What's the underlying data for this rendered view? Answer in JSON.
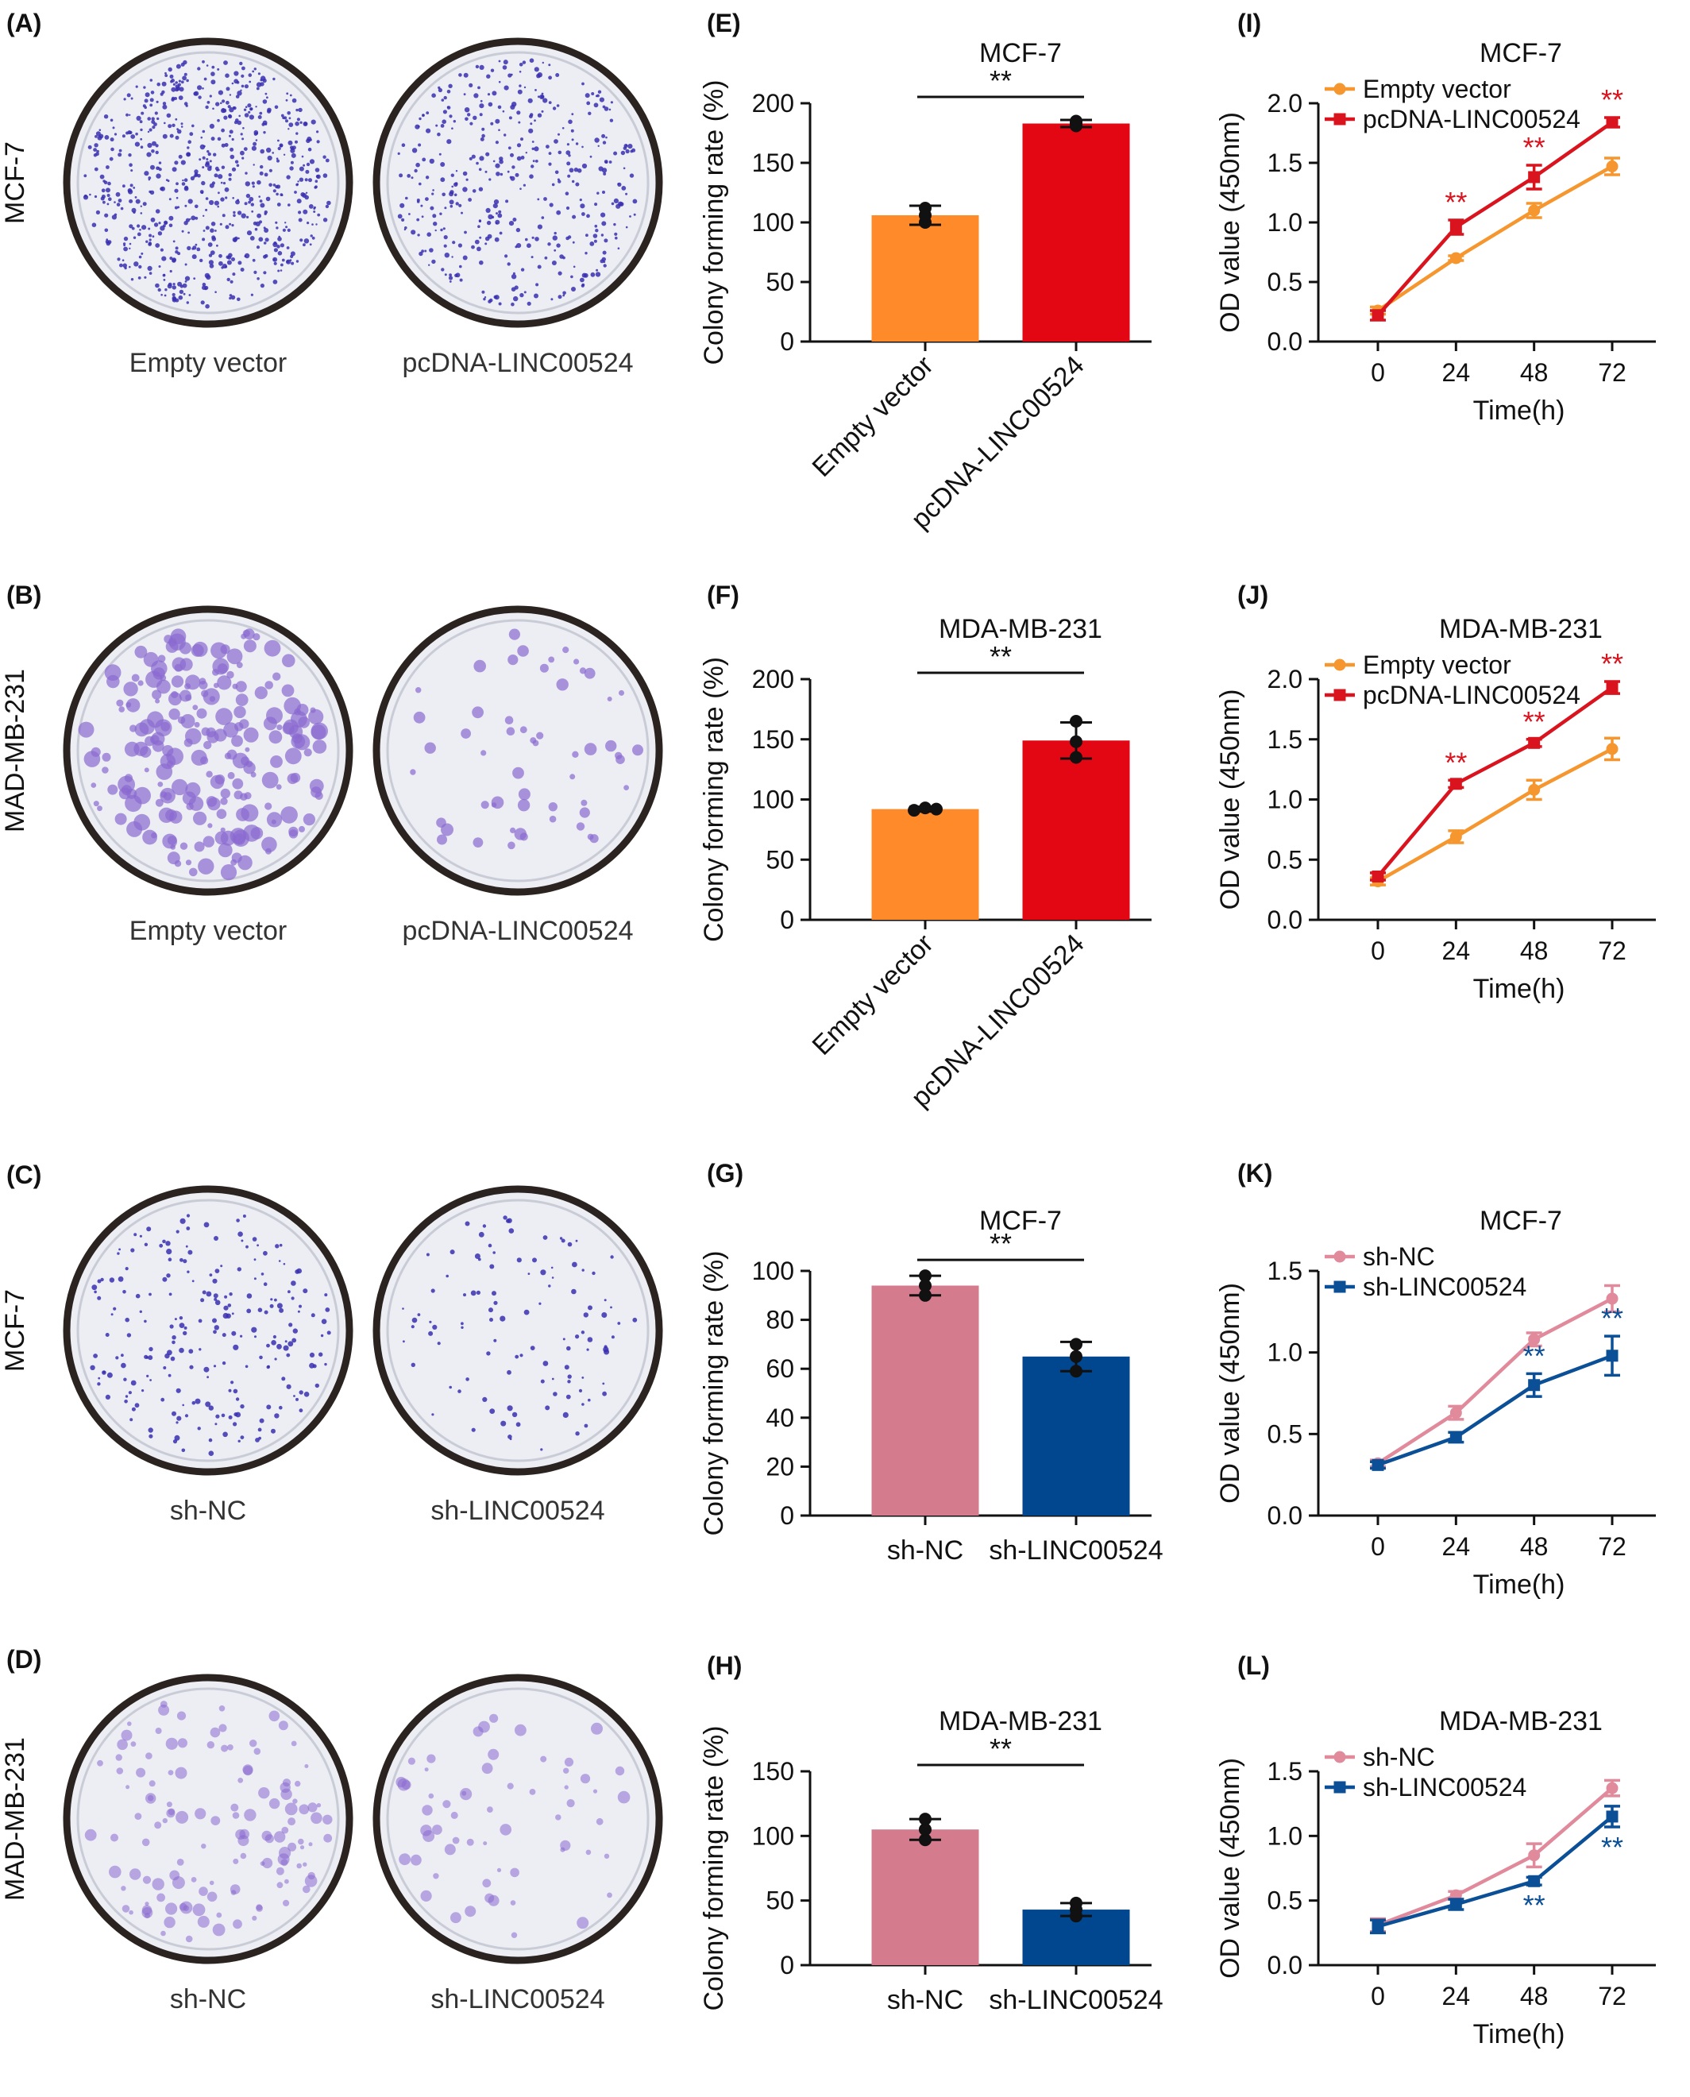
{
  "figure": {
    "colors": {
      "orange": "#ff8a2a",
      "red": "#e30613",
      "pink": "#d47b8e",
      "blue": "#00478f",
      "pink_line": "#e08a9c",
      "orange_line": "#f5962f",
      "red_line": "#d9141e",
      "blue_line": "#0b4f96",
      "dish_rim": "#2a2320",
      "dish_fill": "#eceef4",
      "stain": "#3a2fb0",
      "stain_light": "#8a6ad0"
    },
    "photo_panels": [
      {
        "label": "(A)",
        "row_label": "MCF-7",
        "captions": [
          "Empty vector",
          "pcDNA-LINC00524"
        ],
        "stain": "dots_dense"
      },
      {
        "label": "(B)",
        "row_label": "MAD-MB-231",
        "captions": [
          "Empty vector",
          "pcDNA-LINC00524"
        ],
        "stain": "blotch"
      },
      {
        "label": "(C)",
        "row_label": "MCF-7",
        "captions": [
          "sh-NC",
          "sh-LINC00524"
        ],
        "stain": "dots_sparse"
      },
      {
        "label": "(D)",
        "row_label": "MAD-MB-231",
        "captions": [
          "sh-NC",
          "sh-LINC00524"
        ],
        "stain": "blotch_light"
      }
    ]
  },
  "chart_data": [
    {
      "panel": "(E)",
      "type": "bar",
      "title": "MCF-7",
      "ylabel": "Colony forming rate (%)",
      "ylim": [
        0,
        200
      ],
      "yticks": [
        0,
        50,
        100,
        150,
        200
      ],
      "categories": [
        "Empty vector",
        "pcDNA-LINC00524"
      ],
      "rotated_labels": true,
      "values": [
        106,
        183
      ],
      "errors": [
        8,
        3
      ],
      "points": [
        [
          100,
          112,
          106
        ],
        [
          181,
          185,
          183
        ]
      ],
      "bar_colors": [
        "orange",
        "red"
      ],
      "significance": "**"
    },
    {
      "panel": "(F)",
      "type": "bar",
      "title": "MDA-MB-231",
      "ylabel": "Colony forming rate (%)",
      "ylim": [
        0,
        200
      ],
      "yticks": [
        0,
        50,
        100,
        150,
        200
      ],
      "categories": [
        "Empty vector",
        "pcDNA-LINC00524"
      ],
      "rotated_labels": true,
      "values": [
        92,
        149
      ],
      "errors": [
        2,
        15
      ],
      "points": [
        [
          91,
          93,
          92
        ],
        [
          135,
          165,
          148
        ]
      ],
      "bar_colors": [
        "orange",
        "red"
      ],
      "significance": "**"
    },
    {
      "panel": "(G)",
      "type": "bar",
      "title": "MCF-7",
      "ylabel": "Colony forming rate (%)",
      "ylim": [
        0,
        100
      ],
      "yticks": [
        0,
        20,
        40,
        60,
        80,
        100
      ],
      "categories": [
        "sh-NC",
        "sh-LINC00524"
      ],
      "rotated_labels": false,
      "values": [
        94,
        65
      ],
      "errors": [
        4,
        6
      ],
      "points": [
        [
          90,
          98,
          94
        ],
        [
          59,
          70,
          65
        ]
      ],
      "bar_colors": [
        "pink",
        "blue"
      ],
      "significance": "**"
    },
    {
      "panel": "(H)",
      "type": "bar",
      "title": "MDA-MB-231",
      "ylabel": "Colony forming rate (%)",
      "ylim": [
        0,
        150
      ],
      "yticks": [
        0,
        50,
        100,
        150
      ],
      "categories": [
        "sh-NC",
        "sh-LINC00524"
      ],
      "rotated_labels": false,
      "values": [
        105,
        43
      ],
      "errors": [
        8,
        5
      ],
      "points": [
        [
          97,
          113,
          105
        ],
        [
          38,
          48,
          43
        ]
      ],
      "bar_colors": [
        "pink",
        "blue"
      ],
      "significance": "**"
    },
    {
      "panel": "(I)",
      "type": "line",
      "title": "MCF-7",
      "xlabel": "Time(h)",
      "ylabel": "OD value (450nm)",
      "x": [
        0,
        24,
        48,
        72
      ],
      "ylim": [
        0,
        2.0
      ],
      "yticks": [
        "0.0",
        "0.5",
        "1.0",
        "1.5",
        "2.0"
      ],
      "series": [
        {
          "name": "Empty vector",
          "values": [
            0.26,
            0.7,
            1.1,
            1.47
          ],
          "errors": [
            0.03,
            0.02,
            0.06,
            0.07
          ],
          "color": "orange_line",
          "marker": "circle"
        },
        {
          "name": "pcDNA-LINC00524",
          "values": [
            0.22,
            0.96,
            1.38,
            1.84
          ],
          "errors": [
            0.04,
            0.06,
            0.1,
            0.04
          ],
          "color": "red_line",
          "marker": "square"
        }
      ],
      "stars": [
        {
          "x": 24,
          "value": 0.96,
          "err": 0.06
        },
        {
          "x": 48,
          "value": 1.38,
          "err": 0.1
        },
        {
          "x": 72,
          "value": 1.84,
          "err": 0.04
        }
      ],
      "stars_position": "above",
      "star_color": "red_line",
      "significance": "**"
    },
    {
      "panel": "(J)",
      "type": "line",
      "title": "MDA-MB-231",
      "xlabel": "Time(h)",
      "ylabel": "OD value (450nm)",
      "x": [
        0,
        24,
        48,
        72
      ],
      "ylim": [
        0,
        2.0
      ],
      "yticks": [
        "0.0",
        "0.5",
        "1.0",
        "1.5",
        "2.0"
      ],
      "series": [
        {
          "name": "Empty vector",
          "values": [
            0.32,
            0.69,
            1.08,
            1.42
          ],
          "errors": [
            0.03,
            0.05,
            0.08,
            0.09
          ],
          "color": "orange_line",
          "marker": "circle"
        },
        {
          "name": "pcDNA-LINC00524",
          "values": [
            0.36,
            1.13,
            1.47,
            1.93
          ],
          "errors": [
            0.03,
            0.03,
            0.03,
            0.05
          ],
          "color": "red_line",
          "marker": "square"
        }
      ],
      "stars": [
        {
          "x": 24,
          "value": 1.13,
          "err": 0.03
        },
        {
          "x": 48,
          "value": 1.47,
          "err": 0.03
        },
        {
          "x": 72,
          "value": 1.93,
          "err": 0.05
        }
      ],
      "stars_position": "above",
      "star_color": "red_line",
      "significance": "**"
    },
    {
      "panel": "(K)",
      "type": "line",
      "title": "MCF-7",
      "xlabel": "Time(h)",
      "ylabel": "OD value (450nm)",
      "x": [
        0,
        24,
        48,
        72
      ],
      "ylim": [
        0,
        1.5
      ],
      "yticks": [
        "0.0",
        "0.5",
        "1.0",
        "1.5"
      ],
      "series": [
        {
          "name": "sh-NC",
          "values": [
            0.32,
            0.63,
            1.08,
            1.33
          ],
          "errors": [
            0.02,
            0.04,
            0.04,
            0.08
          ],
          "color": "pink_line",
          "marker": "circle"
        },
        {
          "name": "sh-LINC00524",
          "values": [
            0.31,
            0.48,
            0.8,
            0.98
          ],
          "errors": [
            0.02,
            0.03,
            0.07,
            0.12
          ],
          "color": "blue_line",
          "marker": "square"
        }
      ],
      "stars": [
        {
          "x": 48,
          "value": 0.8,
          "err": 0.07
        },
        {
          "x": 72,
          "value": 0.98,
          "err": 0.12
        }
      ],
      "stars_position": "above",
      "star_color": "blue_line",
      "significance": "**"
    },
    {
      "panel": "(L)",
      "type": "line",
      "title": "MDA-MB-231",
      "xlabel": "Time(h)",
      "ylabel": "OD value (450nm)",
      "x": [
        0,
        24,
        48,
        72
      ],
      "ylim": [
        0,
        1.5
      ],
      "yticks": [
        "0.0",
        "0.5",
        "1.0",
        "1.5"
      ],
      "series": [
        {
          "name": "sh-NC",
          "values": [
            0.31,
            0.54,
            0.85,
            1.37
          ],
          "errors": [
            0.05,
            0.03,
            0.09,
            0.06
          ],
          "color": "pink_line",
          "marker": "circle"
        },
        {
          "name": "sh-LINC00524",
          "values": [
            0.3,
            0.47,
            0.65,
            1.15
          ],
          "errors": [
            0.05,
            0.04,
            0.03,
            0.08
          ],
          "color": "blue_line",
          "marker": "square"
        }
      ],
      "stars": [
        {
          "x": 48,
          "value": 0.65,
          "err": 0.03
        },
        {
          "x": 72,
          "value": 1.15,
          "err": 0.08
        }
      ],
      "stars_position": "below",
      "star_color": "blue_line",
      "significance": "**"
    }
  ]
}
